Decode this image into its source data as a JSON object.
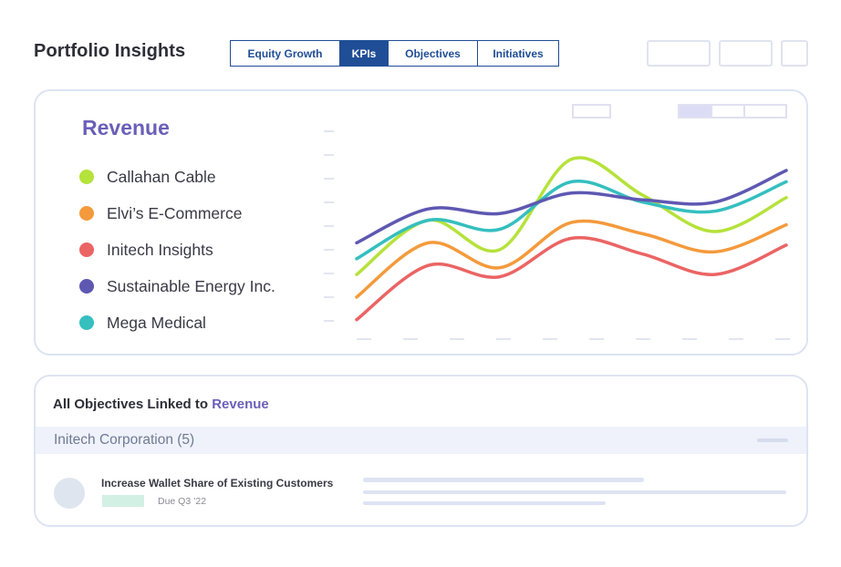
{
  "header": {
    "title": "Portfolio Insights",
    "tabs": [
      {
        "label": "Equity Growth",
        "active": false
      },
      {
        "label": "KPIs",
        "active": true
      },
      {
        "label": "Objectives",
        "active": false
      },
      {
        "label": "Initiatives",
        "active": false
      }
    ]
  },
  "kpi_panel": {
    "title": "Revenue",
    "legend": [
      {
        "label": "Callahan Cable",
        "color": "#b5e23b"
      },
      {
        "label": "Elvi’s E-Commerce",
        "color": "#f49a3c"
      },
      {
        "label": "Initech Insights",
        "color": "#eb6464"
      },
      {
        "label": "Sustainable Energy Inc.",
        "color": "#5e58b2"
      },
      {
        "label": "Mega Medical",
        "color": "#35bfbf"
      }
    ]
  },
  "chart_data": {
    "type": "line",
    "title": "",
    "xlabel": "",
    "ylabel": "",
    "x": [
      0,
      1,
      2,
      3,
      4,
      5,
      6
    ],
    "ylim": [
      0,
      10
    ],
    "grid": false,
    "legend_position": "left",
    "series": [
      {
        "name": "Callahan Cable",
        "color": "#b5e23b",
        "values": [
          3.1,
          5.5,
          4.2,
          8.2,
          6.6,
          5.0,
          6.5
        ]
      },
      {
        "name": "Elvi’s E-Commerce",
        "color": "#f49a3c",
        "values": [
          2.1,
          4.5,
          3.4,
          5.4,
          4.9,
          4.1,
          5.3
        ]
      },
      {
        "name": "Initech Insights",
        "color": "#eb6464",
        "values": [
          1.1,
          3.5,
          3.0,
          4.7,
          4.0,
          3.1,
          4.4
        ]
      },
      {
        "name": "Sustainable Energy Inc.",
        "color": "#5e58b2",
        "values": [
          4.5,
          6.0,
          5.8,
          6.7,
          6.4,
          6.3,
          7.7
        ]
      },
      {
        "name": "Mega Medical",
        "color": "#35bfbf",
        "values": [
          3.8,
          5.5,
          5.1,
          7.2,
          6.3,
          5.9,
          7.2
        ]
      }
    ]
  },
  "objectives": {
    "heading_prefix": "All Objectives Linked to",
    "heading_kpi": "Revenue",
    "group_label": "Initech Corporation (5)",
    "items": [
      {
        "title": "Increase Wallet Share of Existing Customers",
        "due": "Due Q3 ’22"
      }
    ]
  }
}
